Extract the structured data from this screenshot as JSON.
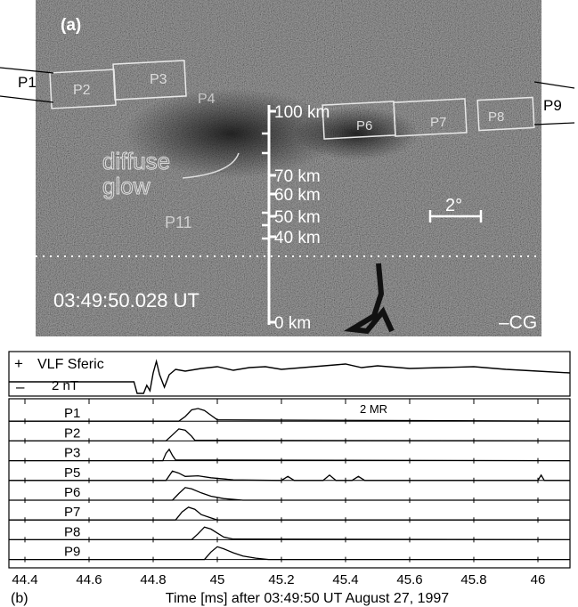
{
  "panel_a": {
    "label": "(a)",
    "timestamp": "03:49:50.028 UT",
    "event_label": "–CG",
    "diffuse_glow_label": [
      "diffuse",
      "glow"
    ],
    "scale_bar_label": "2°",
    "altitude_marks": [
      {
        "label": "100 km",
        "alt_km": 100
      },
      {
        "label": "70 km",
        "alt_km": 70
      },
      {
        "label": "60 km",
        "alt_km": 60
      },
      {
        "label": "50 km",
        "alt_km": 50
      },
      {
        "label": "40 km",
        "alt_km": 40
      },
      {
        "label": "0 km",
        "alt_km": 0
      }
    ],
    "photometer_labels": [
      "P1",
      "P2",
      "P3",
      "P4",
      "P6",
      "P7",
      "P8",
      "P9",
      "P11"
    ]
  },
  "panel_b": {
    "label": "(b)",
    "xlabel": "Time [ms] after 03:49:50 UT  August 27, 1997",
    "sferic_label": "VLF Sferic",
    "sferic_scale": "2 nT",
    "plus_sign": "+",
    "minus_sign": "–",
    "intensity_scale": "2 MR"
  },
  "chart_data": {
    "type": "line",
    "title": "",
    "xlabel": "Time [ms] after 03:49:50 UT  August 27, 1997",
    "xlim": [
      44.35,
      46.1
    ],
    "xticks": [
      44.4,
      44.6,
      44.8,
      45,
      45.2,
      45.4,
      45.6,
      45.8,
      46
    ],
    "xtick_labels": [
      "44.4",
      "44.6",
      "44.8",
      "45",
      "45.2",
      "45.4",
      "45.6",
      "45.8",
      "46"
    ],
    "grid": false,
    "sferic": {
      "name": "VLF Sferic",
      "x": [
        44.35,
        44.6,
        44.74,
        44.75,
        44.77,
        44.78,
        44.79,
        44.8,
        44.81,
        44.82,
        44.835,
        44.85,
        44.87,
        44.9,
        44.95,
        45.0,
        45.05,
        45.1,
        45.15,
        45.2,
        45.3,
        45.4,
        45.45,
        45.5,
        45.6,
        45.7,
        45.8,
        45.9,
        46.0,
        46.1
      ],
      "y": [
        -0.3,
        -0.3,
        -0.3,
        -0.95,
        -0.95,
        -0.5,
        -0.8,
        0.2,
        0.85,
        0.1,
        -0.6,
        0.1,
        0.4,
        0.3,
        0.45,
        0.55,
        0.35,
        0.5,
        0.55,
        0.4,
        0.55,
        0.7,
        0.5,
        0.6,
        0.45,
        0.5,
        0.55,
        0.4,
        0.3,
        0.2
      ]
    },
    "series": [
      {
        "name": "P1",
        "x": [
          44.35,
          44.88,
          44.9,
          44.92,
          44.94,
          44.96,
          44.98,
          45.0,
          46.1
        ],
        "y": [
          0,
          0,
          0.35,
          0.85,
          0.95,
          0.8,
          0.45,
          0.1,
          0
        ]
      },
      {
        "name": "P2",
        "x": [
          44.35,
          44.84,
          44.86,
          44.88,
          44.9,
          44.92,
          44.93,
          46.1
        ],
        "y": [
          0,
          0,
          0.45,
          0.9,
          0.8,
          0.35,
          0.05,
          0
        ]
      },
      {
        "name": "P3",
        "x": [
          44.35,
          44.83,
          44.84,
          44.85,
          44.86,
          44.87,
          46.1
        ],
        "y": [
          0,
          0,
          0.55,
          0.85,
          0.4,
          0.05,
          0
        ]
      },
      {
        "name": "P5",
        "x": [
          44.35,
          44.84,
          44.86,
          44.88,
          44.9,
          44.94,
          44.98,
          45.05,
          45.2,
          45.22,
          45.24,
          45.33,
          45.35,
          45.37,
          45.42,
          45.44,
          45.46,
          46.0,
          46.01,
          46.02,
          46.1
        ],
        "y": [
          0,
          0,
          0.7,
          0.55,
          0.3,
          0.35,
          0.2,
          0.05,
          0,
          0.3,
          0,
          0,
          0.4,
          0,
          0,
          0.3,
          0,
          0,
          0.4,
          0,
          0
        ]
      },
      {
        "name": "P6",
        "x": [
          44.35,
          44.86,
          44.88,
          44.9,
          44.92,
          44.95,
          44.98,
          45.02,
          45.08,
          46.1
        ],
        "y": [
          0,
          0,
          0.5,
          0.95,
          0.85,
          0.55,
          0.3,
          0.12,
          0,
          0
        ]
      },
      {
        "name": "P7",
        "x": [
          44.35,
          44.87,
          44.89,
          44.91,
          44.93,
          44.95,
          44.98,
          45.0,
          46.1
        ],
        "y": [
          0,
          0,
          0.6,
          0.95,
          0.8,
          0.4,
          0.15,
          0,
          0
        ]
      },
      {
        "name": "P8",
        "x": [
          44.35,
          44.92,
          44.94,
          44.96,
          44.98,
          45.0,
          45.02,
          45.05,
          46.1
        ],
        "y": [
          0,
          0,
          0.45,
          0.95,
          0.8,
          0.5,
          0.2,
          0.05,
          0
        ]
      },
      {
        "name": "P9",
        "x": [
          44.35,
          44.96,
          44.98,
          45.0,
          45.02,
          45.05,
          45.08,
          45.12,
          45.16,
          46.1
        ],
        "y": [
          0,
          0,
          0.55,
          0.95,
          0.8,
          0.5,
          0.25,
          0.1,
          0,
          0
        ]
      }
    ]
  }
}
